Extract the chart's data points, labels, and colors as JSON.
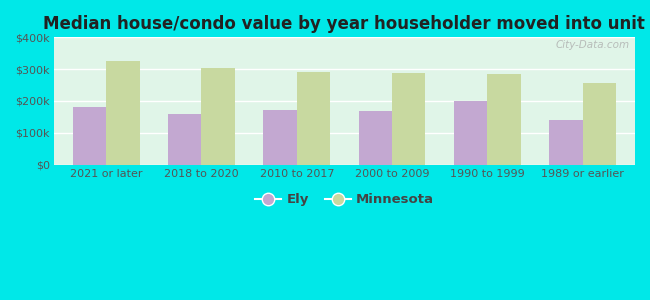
{
  "title": "Median house/condo value by year householder moved into unit",
  "categories": [
    "2021 or later",
    "2018 to 2020",
    "2010 to 2017",
    "2000 to 2009",
    "1990 to 1999",
    "1989 or earlier"
  ],
  "ely_values": [
    182000,
    160000,
    171000,
    168000,
    200000,
    140000
  ],
  "mn_values": [
    325000,
    305000,
    290000,
    288000,
    284000,
    255000
  ],
  "ely_color": "#c3a8d1",
  "mn_color": "#c8d9a0",
  "background_color": "#00e8e8",
  "plot_bg_color": "#e0f5e8",
  "ylim": [
    0,
    400000
  ],
  "yticks": [
    0,
    100000,
    200000,
    300000,
    400000
  ],
  "ytick_labels": [
    "$0",
    "$100k",
    "$200k",
    "$300k",
    "$400k"
  ],
  "legend_ely": "Ely",
  "legend_mn": "Minnesota",
  "bar_width": 0.35,
  "watermark": "City-Data.com",
  "title_fontsize": 12,
  "tick_fontsize": 8,
  "grid_color": "#ffffff"
}
